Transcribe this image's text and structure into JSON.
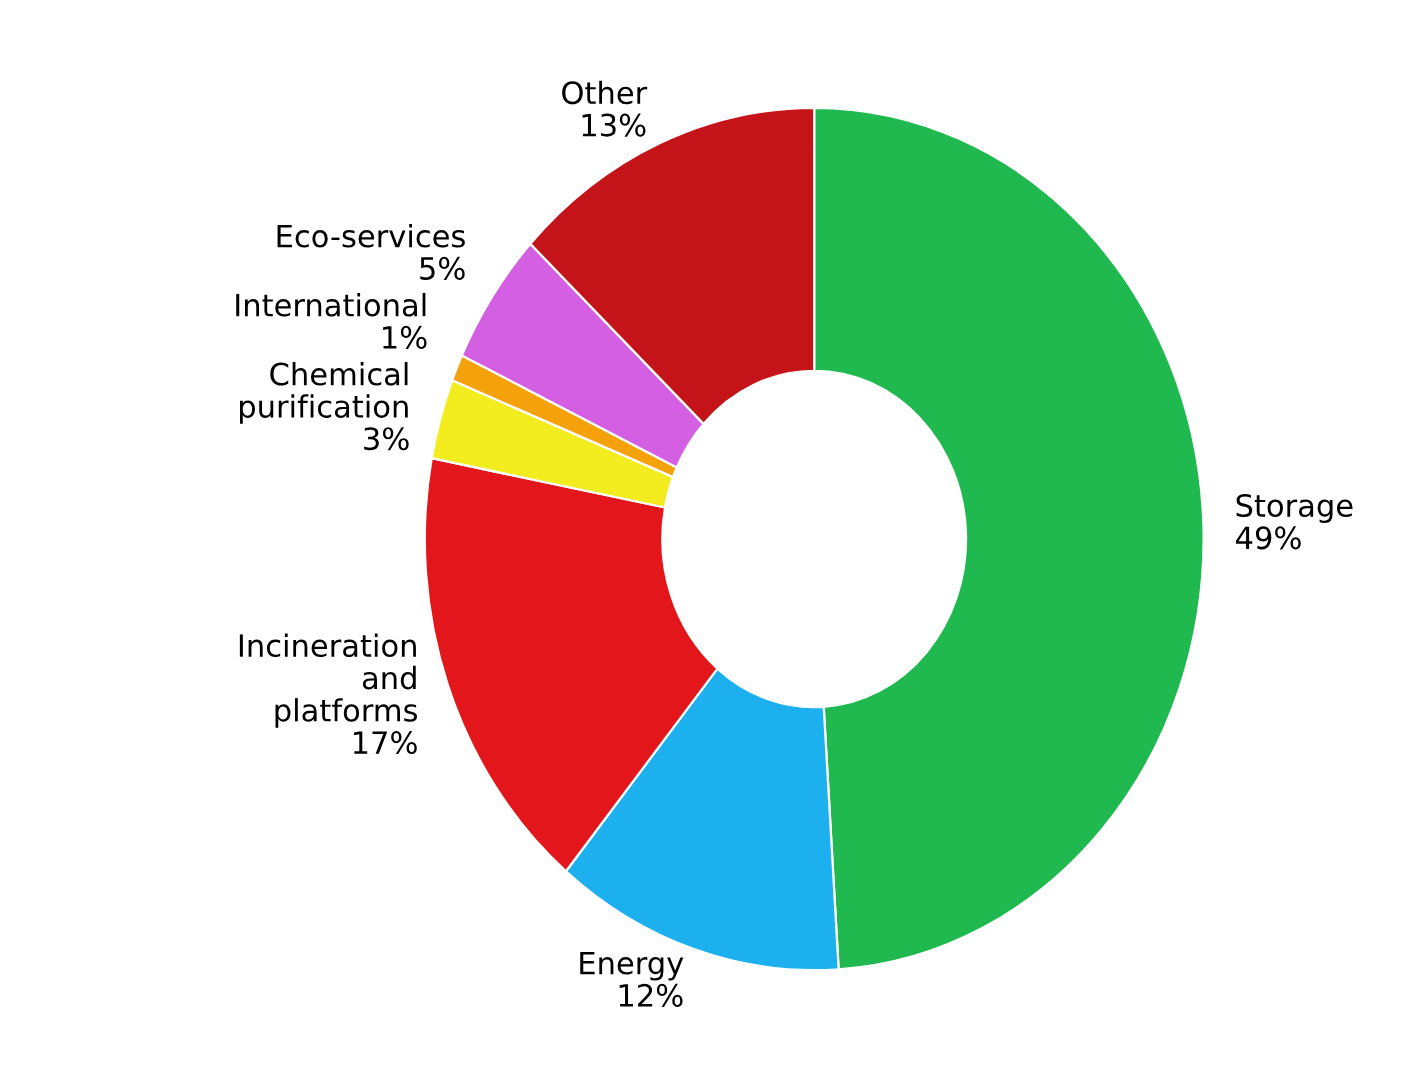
{
  "chart_data": {
    "type": "donut",
    "categories": [
      "Storage",
      "Energy",
      "Incineration and platforms",
      "Chemical purification",
      "International",
      "Eco-services",
      "Other"
    ],
    "values": [
      49,
      12,
      17,
      3,
      1,
      5,
      13
    ],
    "colors": [
      "#1fb94f",
      "#1cb0ee",
      "#e3161b",
      "#f3ec1f",
      "#f5a10a",
      "#d45fe2",
      "#c41419"
    ],
    "legend": false,
    "value_labels": [
      "49%",
      "12%",
      "17%",
      "3%",
      "1%",
      "5%",
      "13%"
    ]
  }
}
